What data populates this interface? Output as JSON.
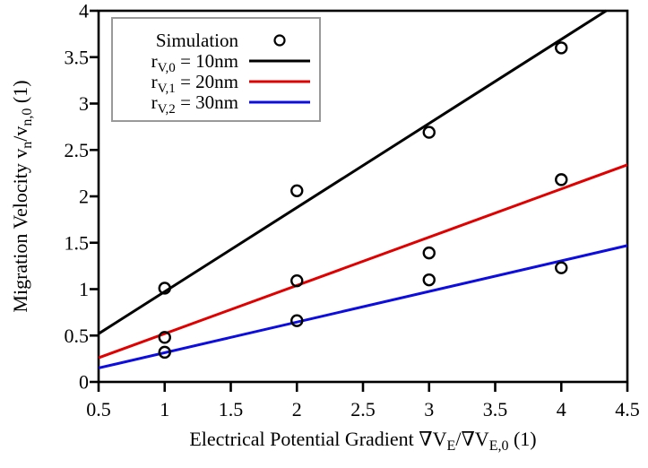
{
  "figure": {
    "background": "#ffffff",
    "border_color": "#000000"
  },
  "chart_data": {
    "type": "scatter",
    "title": "",
    "xlabel_rich": [
      {
        "t": "Electrical Potential Gradient ∇V",
        "sub": false
      },
      {
        "t": "E",
        "sub": true
      },
      {
        "t": "/∇V",
        "sub": false
      },
      {
        "t": "E,0",
        "sub": true
      },
      {
        "t": " (1)",
        "sub": false
      }
    ],
    "ylabel_rich": [
      {
        "t": "Migration Velocity v",
        "sub": false
      },
      {
        "t": "n",
        "sub": true
      },
      {
        "t": "/v",
        "sub": false
      },
      {
        "t": "n,0",
        "sub": true
      },
      {
        "t": " (1)",
        "sub": false
      }
    ],
    "xlim": [
      0.5,
      4.5
    ],
    "ylim": [
      0,
      4
    ],
    "xticks": [
      0.5,
      1,
      1.5,
      2,
      2.5,
      3,
      3.5,
      4,
      4.5
    ],
    "yticks": [
      0,
      0.5,
      1,
      1.5,
      2,
      2.5,
      3,
      3.5,
      4
    ],
    "grid": false,
    "legend": {
      "position": "top-left",
      "border_color": "#999999",
      "scatter_label": "Simulation",
      "marker": "open-circle"
    },
    "scatter_series": {
      "name": "Simulation",
      "color": "#000000",
      "points": [
        [
          1,
          1.01
        ],
        [
          1,
          0.48
        ],
        [
          1,
          0.32
        ],
        [
          2,
          2.06
        ],
        [
          2,
          1.09
        ],
        [
          2,
          0.66
        ],
        [
          3,
          2.69
        ],
        [
          3,
          1.39
        ],
        [
          3,
          1.1
        ],
        [
          4,
          3.6
        ],
        [
          4,
          2.18
        ],
        [
          4,
          1.23
        ]
      ]
    },
    "line_series": [
      {
        "name_rich": [
          {
            "t": "r",
            "sub": false
          },
          {
            "t": "V,0",
            "sub": true
          },
          {
            "t": " = 10nm",
            "sub": false
          }
        ],
        "color": "#000000",
        "x": [
          0.5,
          4.34
        ],
        "y": [
          0.52,
          4.0
        ]
      },
      {
        "name_rich": [
          {
            "t": "r",
            "sub": false
          },
          {
            "t": "V,1",
            "sub": true
          },
          {
            "t": " = 20nm",
            "sub": false
          }
        ],
        "color": "#e00000",
        "x": [
          0.5,
          4.5
        ],
        "y": [
          0.26,
          2.34
        ]
      },
      {
        "name_rich": [
          {
            "t": "r",
            "sub": false
          },
          {
            "t": "V,2",
            "sub": true
          },
          {
            "t": " = 30nm",
            "sub": false
          }
        ],
        "color": "#0d0de0",
        "x": [
          0.5,
          4.5
        ],
        "y": [
          0.15,
          1.47
        ]
      }
    ]
  }
}
